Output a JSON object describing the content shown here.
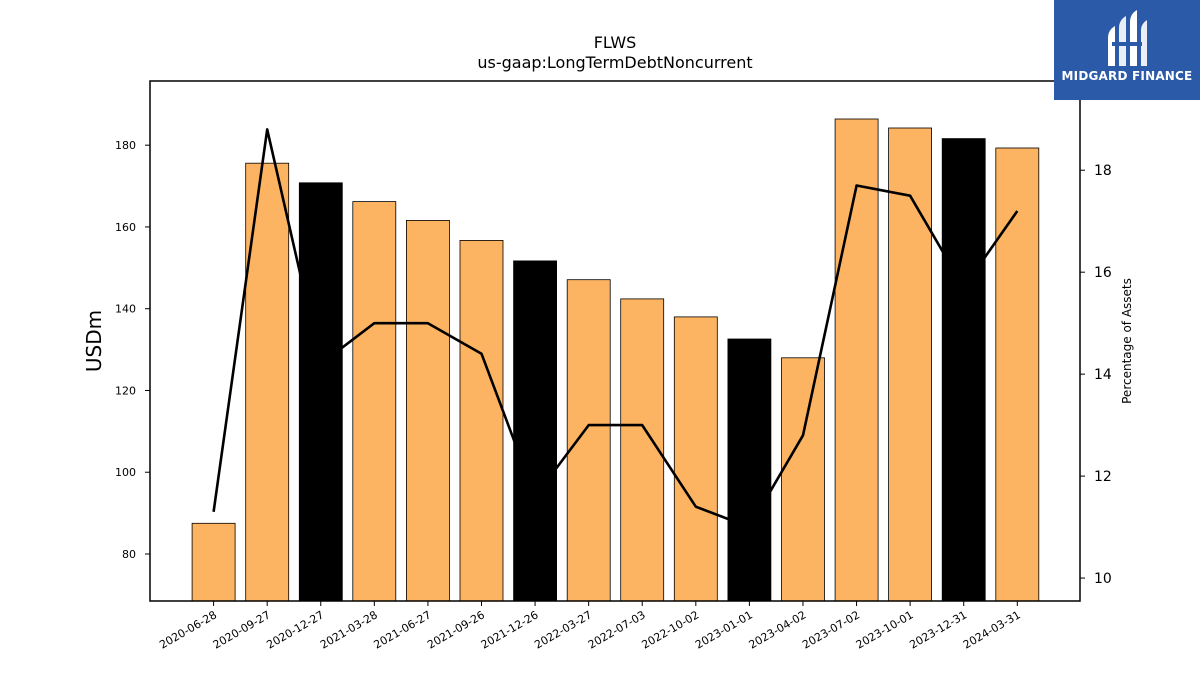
{
  "brand": {
    "name": "MIDGARD FINANCE",
    "bg_color": "#2a5aa8"
  },
  "chart_data": {
    "type": "bar",
    "title": "FLWS",
    "subtitle": "us-gaap:LongTermDebtNoncurrent",
    "ylabel": "USDm",
    "y2label": "Percentage of Assets",
    "ylim": [
      68.5,
      195.7
    ],
    "y2lim": [
      9.55,
      19.75
    ],
    "yticks": [
      80,
      100,
      120,
      140,
      160,
      180
    ],
    "y2ticks": [
      10,
      12,
      14,
      16,
      18
    ],
    "categories": [
      "2020-06-28",
      "2020-09-27",
      "2020-12-27",
      "2021-03-28",
      "2021-06-27",
      "2021-09-26",
      "2021-12-26",
      "2022-03-27",
      "2022-07-03",
      "2022-10-02",
      "2023-01-01",
      "2023-04-02",
      "2023-07-02",
      "2023-10-01",
      "2023-12-31",
      "2024-03-31"
    ],
    "series": [
      {
        "type": "bar",
        "values": [
          87.5,
          175.6,
          170.8,
          166.2,
          161.6,
          156.7,
          151.7,
          147.1,
          142.4,
          138.0,
          132.6,
          128.0,
          186.4,
          184.2,
          181.6,
          179.3
        ],
        "colors": [
          "#fdb462",
          "#fdb462",
          "#000000",
          "#fdb462",
          "#fdb462",
          "#fdb462",
          "#000000",
          "#fdb462",
          "#fdb462",
          "#fdb462",
          "#000000",
          "#fdb462",
          "#fdb462",
          "#fdb462",
          "#000000",
          "#fdb462"
        ]
      },
      {
        "type": "line",
        "axis": "right",
        "values": [
          11.3,
          18.8,
          14.2,
          15.0,
          15.0,
          14.4,
          11.6,
          13.0,
          13.0,
          11.4,
          11.0,
          12.8,
          17.7,
          17.5,
          15.7,
          17.2
        ],
        "color": "#000000"
      }
    ]
  }
}
